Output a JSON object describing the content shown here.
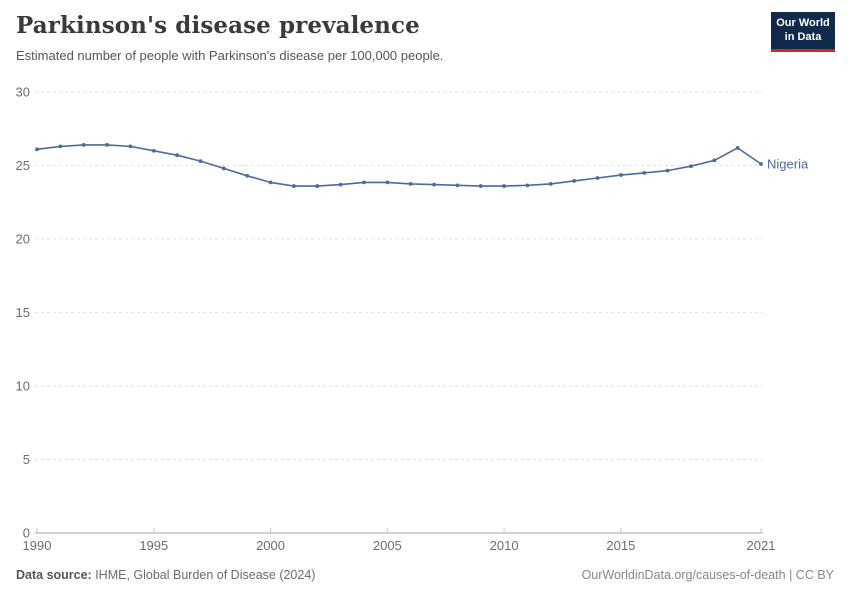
{
  "header": {
    "title": "Parkinson's disease prevalence",
    "subtitle": "Estimated number of people with Parkinson's disease per 100,000 people."
  },
  "logo": {
    "line1": "Our World",
    "line2": "in Data",
    "bg_color": "#102A4C",
    "accent_color": "#CF2A20"
  },
  "chart_data": {
    "type": "line",
    "title": "Parkinson's disease prevalence",
    "subtitle": "Estimated number of people with Parkinson's disease per 100,000 people.",
    "xlabel": "",
    "ylabel": "",
    "xlim": [
      1990,
      2021
    ],
    "ylim": [
      0,
      30
    ],
    "yticks": [
      0,
      5,
      10,
      15,
      20,
      25,
      30
    ],
    "xticks": [
      1990,
      1995,
      2000,
      2005,
      2010,
      2015,
      2021
    ],
    "grid": "horizontal-dashed",
    "legend_position": "end-of-line",
    "x": [
      1990,
      1991,
      1992,
      1993,
      1994,
      1995,
      1996,
      1997,
      1998,
      1999,
      2000,
      2001,
      2002,
      2003,
      2004,
      2005,
      2006,
      2007,
      2008,
      2009,
      2010,
      2011,
      2012,
      2013,
      2014,
      2015,
      2016,
      2017,
      2018,
      2019,
      2020,
      2021
    ],
    "series": [
      {
        "name": "Nigeria",
        "color": "#4C6A9C",
        "values": [
          26.1,
          26.3,
          26.4,
          26.4,
          26.3,
          26.0,
          25.7,
          25.3,
          24.8,
          24.3,
          23.85,
          23.6,
          23.6,
          23.7,
          23.85,
          23.85,
          23.75,
          23.7,
          23.65,
          23.6,
          23.6,
          23.65,
          23.75,
          23.95,
          24.15,
          24.35,
          24.5,
          24.65,
          24.95,
          25.35,
          26.2,
          25.1
        ]
      }
    ],
    "theme": {
      "grid_color": "#e2e2e2",
      "axis_color": "#a6a6a6",
      "tick_color": "#c8c8c8",
      "label_color": "#6e6e6e"
    }
  },
  "footer": {
    "source_label": "Data source:",
    "source_value": " IHME, Global Burden of Disease (2024)",
    "credit": "OurWorldinData.org/causes-of-death | CC BY"
  }
}
